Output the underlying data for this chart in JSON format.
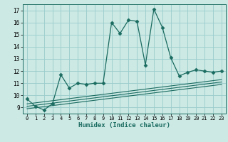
{
  "title": "",
  "xlabel": "Humidex (Indice chaleur)",
  "ylabel": "",
  "background_color": "#cce9e4",
  "grid_color": "#99cccc",
  "line_color": "#1a6b60",
  "xlim": [
    -0.5,
    23.5
  ],
  "ylim": [
    8.5,
    17.5
  ],
  "xticks": [
    0,
    1,
    2,
    3,
    4,
    5,
    6,
    7,
    8,
    9,
    10,
    11,
    12,
    13,
    14,
    15,
    16,
    17,
    18,
    19,
    20,
    21,
    22,
    23
  ],
  "yticks": [
    9,
    10,
    11,
    12,
    13,
    14,
    15,
    16,
    17
  ],
  "main_x": [
    0,
    1,
    2,
    3,
    4,
    5,
    6,
    7,
    8,
    9,
    10,
    11,
    12,
    13,
    14,
    15,
    16,
    17,
    18,
    19,
    20,
    21,
    22,
    23
  ],
  "main_y": [
    9.7,
    9.1,
    8.8,
    9.3,
    11.7,
    10.6,
    11.0,
    10.9,
    11.0,
    11.0,
    16.0,
    15.1,
    16.2,
    16.1,
    12.5,
    17.1,
    15.6,
    13.1,
    11.6,
    11.9,
    12.1,
    12.0,
    11.9,
    12.0
  ],
  "line1_y_start": 8.9,
  "line1_y_end": 10.9,
  "line2_y_start": 9.1,
  "line2_y_end": 11.1,
  "line3_y_start": 9.3,
  "line3_y_end": 11.3
}
